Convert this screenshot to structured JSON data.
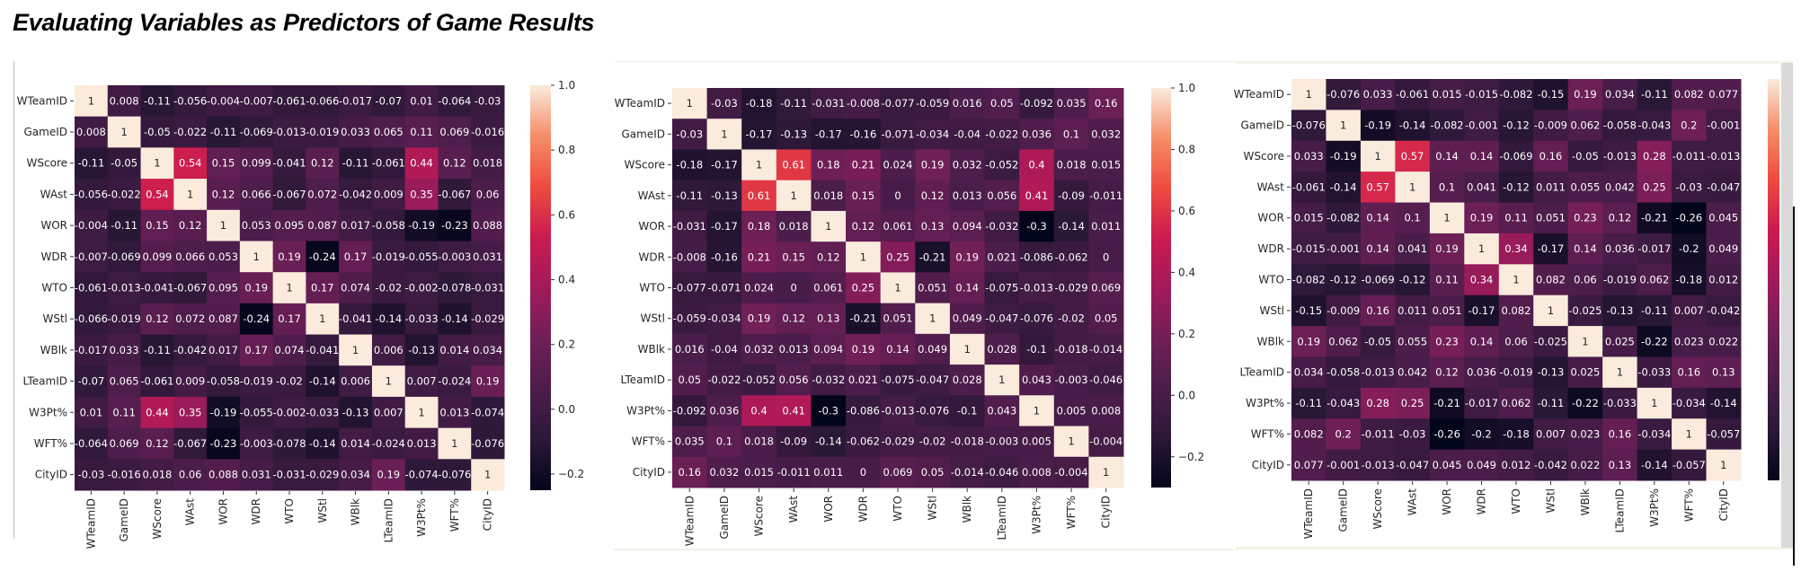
{
  "title": "Evaluating Variables as Predictors of Game Results",
  "chart_data": [
    {
      "type": "heatmap",
      "title": "",
      "colormap": "rocket",
      "vmin": -0.25,
      "vmax": 1.0,
      "colorbar_ticks": [
        "1.0",
        "0.8",
        "0.6",
        "0.4",
        "0.2",
        "0.0",
        "−0.2"
      ],
      "colorbar_tick_values": [
        1.0,
        0.8,
        0.6,
        0.4,
        0.2,
        0.0,
        -0.2
      ],
      "labels": [
        "WTeamID",
        "GameID",
        "WScore",
        "WAst",
        "WOR",
        "WDR",
        "WTO",
        "WStl",
        "WBlk",
        "LTeamID",
        "W3Pt%",
        "WFT%",
        "CityID"
      ],
      "values": [
        [
          "1",
          "0.008",
          "-0.11",
          "-0.056",
          "-0.004",
          "-0.007",
          "-0.061",
          "-0.066",
          "-0.017",
          "-0.07",
          "0.01",
          "-0.064",
          "-0.03"
        ],
        [
          "0.008",
          "1",
          "-0.05",
          "-0.022",
          "-0.11",
          "-0.069",
          "-0.013",
          "-0.019",
          "0.033",
          "0.065",
          "0.11",
          "0.069",
          "-0.016"
        ],
        [
          "-0.11",
          "-0.05",
          "1",
          "0.54",
          "0.15",
          "0.099",
          "-0.041",
          "0.12",
          "-0.11",
          "-0.061",
          "0.44",
          "0.12",
          "0.018"
        ],
        [
          "-0.056",
          "-0.022",
          "0.54",
          "1",
          "0.12",
          "0.066",
          "-0.067",
          "0.072",
          "-0.042",
          "0.009",
          "0.35",
          "-0.067",
          "0.06"
        ],
        [
          "-0.004",
          "-0.11",
          "0.15",
          "0.12",
          "1",
          "0.053",
          "0.095",
          "0.087",
          "0.017",
          "-0.058",
          "-0.19",
          "-0.23",
          "0.088"
        ],
        [
          "-0.007",
          "-0.069",
          "0.099",
          "0.066",
          "0.053",
          "1",
          "0.19",
          "-0.24",
          "0.17",
          "-0.019",
          "-0.055",
          "-0.003",
          "0.031"
        ],
        [
          "-0.061",
          "-0.013",
          "-0.041",
          "-0.067",
          "0.095",
          "0.19",
          "1",
          "0.17",
          "0.074",
          "-0.02",
          "-0.002",
          "-0.078",
          "-0.031"
        ],
        [
          "-0.066",
          "-0.019",
          "0.12",
          "0.072",
          "0.087",
          "-0.24",
          "0.17",
          "1",
          "-0.041",
          "-0.14",
          "-0.033",
          "-0.14",
          "-0.029"
        ],
        [
          "-0.017",
          "0.033",
          "-0.11",
          "-0.042",
          "0.017",
          "0.17",
          "0.074",
          "-0.041",
          "1",
          "0.006",
          "-0.13",
          "0.014",
          "0.034"
        ],
        [
          "-0.07",
          "0.065",
          "-0.061",
          "0.009",
          "-0.058",
          "-0.019",
          "-0.02",
          "-0.14",
          "0.006",
          "1",
          "0.007",
          "-0.024",
          "0.19"
        ],
        [
          "0.01",
          "0.11",
          "0.44",
          "0.35",
          "-0.19",
          "-0.055",
          "-0.002",
          "-0.033",
          "-0.13",
          "0.007",
          "1",
          "0.013",
          "-0.074"
        ],
        [
          "-0.064",
          "0.069",
          "0.12",
          "-0.067",
          "-0.23",
          "-0.003",
          "-0.078",
          "-0.14",
          "0.014",
          "-0.024",
          "0.013",
          "1",
          "-0.076"
        ],
        [
          "-0.03",
          "-0.016",
          "0.018",
          "0.06",
          "0.088",
          "0.031",
          "-0.031",
          "-0.029",
          "0.034",
          "0.19",
          "-0.074",
          "-0.076",
          "1"
        ]
      ]
    },
    {
      "type": "heatmap",
      "title": "",
      "colormap": "rocket",
      "vmin": -0.3,
      "vmax": 1.0,
      "colorbar_ticks": [
        "1.0",
        "0.8",
        "0.6",
        "0.4",
        "0.2",
        "0.0",
        "−0.2"
      ],
      "colorbar_tick_values": [
        1.0,
        0.8,
        0.6,
        0.4,
        0.2,
        0.0,
        -0.2
      ],
      "labels": [
        "WTeamID",
        "GameID",
        "WScore",
        "WAst",
        "WOR",
        "WDR",
        "WTO",
        "WStl",
        "WBlk",
        "LTeamID",
        "W3Pt%",
        "WFT%",
        "CityID"
      ],
      "values": [
        [
          "1",
          "-0.03",
          "-0.18",
          "-0.11",
          "-0.031",
          "-0.008",
          "-0.077",
          "-0.059",
          "0.016",
          "0.05",
          "-0.092",
          "0.035",
          "0.16"
        ],
        [
          "-0.03",
          "1",
          "-0.17",
          "-0.13",
          "-0.17",
          "-0.16",
          "-0.071",
          "-0.034",
          "-0.04",
          "-0.022",
          "0.036",
          "0.1",
          "0.032"
        ],
        [
          "-0.18",
          "-0.17",
          "1",
          "0.61",
          "0.18",
          "0.21",
          "0.024",
          "0.19",
          "0.032",
          "-0.052",
          "0.4",
          "0.018",
          "0.015"
        ],
        [
          "-0.11",
          "-0.13",
          "0.61",
          "1",
          "0.018",
          "0.15",
          "0",
          "0.12",
          "0.013",
          "0.056",
          "0.41",
          "-0.09",
          "-0.011"
        ],
        [
          "-0.031",
          "-0.17",
          "0.18",
          "0.018",
          "1",
          "0.12",
          "0.061",
          "0.13",
          "0.094",
          "-0.032",
          "-0.3",
          "-0.14",
          "0.011"
        ],
        [
          "-0.008",
          "-0.16",
          "0.21",
          "0.15",
          "0.12",
          "1",
          "0.25",
          "-0.21",
          "0.19",
          "0.021",
          "-0.086",
          "-0.062",
          "0"
        ],
        [
          "-0.077",
          "-0.071",
          "0.024",
          "0",
          "0.061",
          "0.25",
          "1",
          "0.051",
          "0.14",
          "-0.075",
          "-0.013",
          "-0.029",
          "0.069"
        ],
        [
          "-0.059",
          "-0.034",
          "0.19",
          "0.12",
          "0.13",
          "-0.21",
          "0.051",
          "1",
          "0.049",
          "-0.047",
          "-0.076",
          "-0.02",
          "0.05"
        ],
        [
          "0.016",
          "-0.04",
          "0.032",
          "0.013",
          "0.094",
          "0.19",
          "0.14",
          "0.049",
          "1",
          "0.028",
          "-0.1",
          "-0.018",
          "-0.014"
        ],
        [
          "0.05",
          "-0.022",
          "-0.052",
          "0.056",
          "-0.032",
          "0.021",
          "-0.075",
          "-0.047",
          "0.028",
          "1",
          "0.043",
          "-0.003",
          "-0.046"
        ],
        [
          "-0.092",
          "0.036",
          "0.4",
          "0.41",
          "-0.3",
          "-0.086",
          "-0.013",
          "-0.076",
          "-0.1",
          "0.043",
          "1",
          "0.005",
          "0.008"
        ],
        [
          "0.035",
          "0.1",
          "0.018",
          "-0.09",
          "-0.14",
          "-0.062",
          "-0.029",
          "-0.02",
          "-0.018",
          "-0.003",
          "0.005",
          "1",
          "-0.004"
        ],
        [
          "0.16",
          "0.032",
          "0.015",
          "-0.011",
          "0.011",
          "0",
          "0.069",
          "0.05",
          "-0.014",
          "-0.046",
          "0.008",
          "-0.004",
          "1"
        ]
      ]
    },
    {
      "type": "heatmap",
      "title": "",
      "colormap": "rocket",
      "vmin": -0.26,
      "vmax": 1.0,
      "colorbar_ticks": [],
      "colorbar_tick_values": [],
      "labels": [
        "WTeamID",
        "GameID",
        "WScore",
        "WAst",
        "WOR",
        "WDR",
        "WTO",
        "WStl",
        "WBlk",
        "LTeamID",
        "W3Pt%",
        "WFT%",
        "CityID"
      ],
      "values": [
        [
          "1",
          "-0.076",
          "0.033",
          "-0.061",
          "0.015",
          "-0.015",
          "-0.082",
          "-0.15",
          "0.19",
          "0.034",
          "-0.11",
          "0.082",
          "0.077"
        ],
        [
          "-0.076",
          "1",
          "-0.19",
          "-0.14",
          "-0.082",
          "-0.001",
          "-0.12",
          "-0.009",
          "0.062",
          "-0.058",
          "-0.043",
          "0.2",
          "-0.001"
        ],
        [
          "0.033",
          "-0.19",
          "1",
          "0.57",
          "0.14",
          "0.14",
          "-0.069",
          "0.16",
          "-0.05",
          "-0.013",
          "0.28",
          "-0.011",
          "-0.013"
        ],
        [
          "-0.061",
          "-0.14",
          "0.57",
          "1",
          "0.1",
          "0.041",
          "-0.12",
          "0.011",
          "0.055",
          "0.042",
          "0.25",
          "-0.03",
          "-0.047"
        ],
        [
          "0.015",
          "-0.082",
          "0.14",
          "0.1",
          "1",
          "0.19",
          "0.11",
          "0.051",
          "0.23",
          "0.12",
          "-0.21",
          "-0.26",
          "0.045"
        ],
        [
          "-0.015",
          "-0.001",
          "0.14",
          "0.041",
          "0.19",
          "1",
          "0.34",
          "-0.17",
          "0.14",
          "0.036",
          "-0.017",
          "-0.2",
          "0.049"
        ],
        [
          "-0.082",
          "-0.12",
          "-0.069",
          "-0.12",
          "0.11",
          "0.34",
          "1",
          "0.082",
          "0.06",
          "-0.019",
          "0.062",
          "-0.18",
          "0.012"
        ],
        [
          "-0.15",
          "-0.009",
          "0.16",
          "0.011",
          "0.051",
          "-0.17",
          "0.082",
          "1",
          "-0.025",
          "-0.13",
          "-0.11",
          "0.007",
          "-0.042"
        ],
        [
          "0.19",
          "0.062",
          "-0.05",
          "0.055",
          "0.23",
          "0.14",
          "0.06",
          "-0.025",
          "1",
          "0.025",
          "-0.22",
          "0.023",
          "0.022"
        ],
        [
          "0.034",
          "-0.058",
          "-0.013",
          "0.042",
          "0.12",
          "0.036",
          "-0.019",
          "-0.13",
          "0.025",
          "1",
          "-0.033",
          "0.16",
          "0.13"
        ],
        [
          "-0.11",
          "-0.043",
          "0.28",
          "0.25",
          "-0.21",
          "-0.017",
          "0.062",
          "-0.11",
          "-0.22",
          "-0.033",
          "1",
          "-0.034",
          "-0.14"
        ],
        [
          "0.082",
          "0.2",
          "-0.011",
          "-0.03",
          "-0.26",
          "-0.2",
          "-0.18",
          "0.007",
          "0.023",
          "0.16",
          "-0.034",
          "1",
          "-0.057"
        ],
        [
          "0.077",
          "-0.001",
          "-0.013",
          "-0.047",
          "0.045",
          "0.049",
          "0.012",
          "-0.042",
          "0.022",
          "0.13",
          "-0.14",
          "-0.057",
          "1"
        ]
      ]
    }
  ]
}
